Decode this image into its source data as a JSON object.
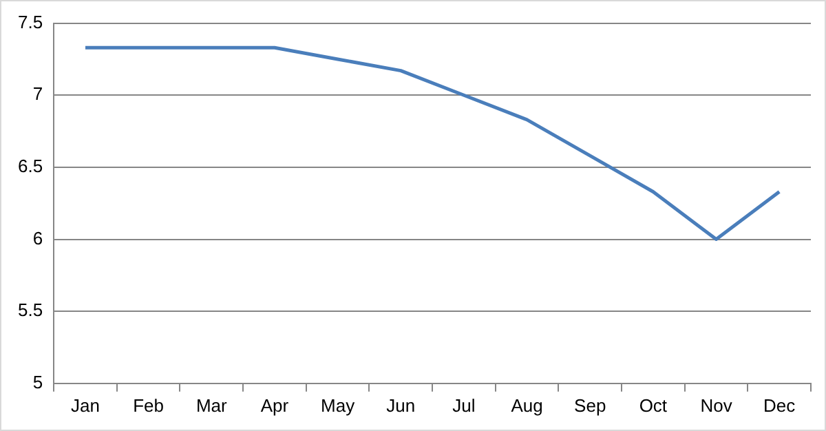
{
  "chart_data": {
    "type": "line",
    "categories": [
      "Jan",
      "Feb",
      "Mar",
      "Apr",
      "May",
      "Jun",
      "Jul",
      "Aug",
      "Sep",
      "Oct",
      "Nov",
      "Dec"
    ],
    "series": [
      {
        "color": "#4a7ebb",
        "values": [
          7.33,
          7.33,
          7.33,
          7.33,
          7.25,
          7.17,
          7.0,
          6.83,
          6.58,
          6.33,
          6.0,
          6.33
        ]
      }
    ],
    "ylim": [
      5,
      7.5
    ],
    "yticks": [
      5,
      5.5,
      6,
      6.5,
      7,
      7.5
    ],
    "grid": "y",
    "marker": "none",
    "line_style": "solid"
  }
}
